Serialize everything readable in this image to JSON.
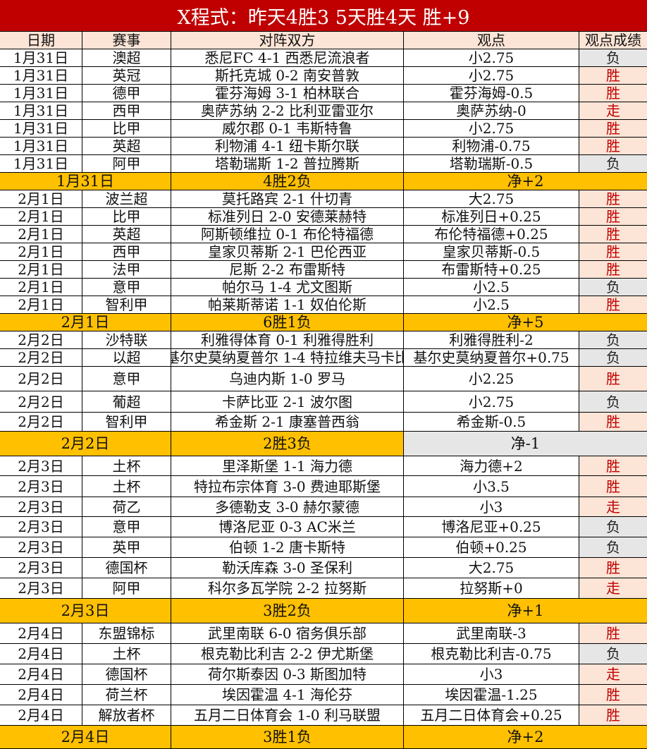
{
  "title": "X程式：昨天4胜3 5天胜4天 胜+9",
  "headers": [
    "日期",
    "赛事",
    "对阵双方",
    "观点",
    "观点成绩"
  ],
  "colors": {
    "title_bg": "#C00000",
    "header_bg": "#FCE4D6",
    "summary_bg": "#FFC000",
    "win_bg": "#FCE4D6",
    "win_text": "#C00000",
    "loss_bg": "#E7E6E6"
  },
  "groups": [
    {
      "rows": [
        [
          "1月31日",
          "澳超",
          "悉尼FC 4-1 西悉尼流浪者",
          "小2.75",
          "负"
        ],
        [
          "1月31日",
          "英冠",
          "斯托克城 0-2 南安普敦",
          "小2.75",
          "胜"
        ],
        [
          "1月31日",
          "德甲",
          "霍芬海姆 3-1 柏林联合",
          "霍芬海姆-0.5",
          "胜"
        ],
        [
          "1月31日",
          "西甲",
          "奥萨苏纳 2-2 比利亚雷亚尔",
          "奥萨苏纳-0",
          "走"
        ],
        [
          "1月31日",
          "比甲",
          "威尔郡 0-1 韦斯特鲁",
          "小2.75",
          "胜"
        ],
        [
          "1月31日",
          "英超",
          "利物浦 4-1 纽卡斯尔联",
          "利物浦-0.75",
          "胜"
        ],
        [
          "1月31日",
          "阿甲",
          "塔勒瑞斯 1-2 普拉腾斯",
          "塔勒瑞斯-0.5",
          "负"
        ]
      ],
      "summary": [
        "1月31日",
        "4胜2负",
        "净+2"
      ],
      "net_grey": false
    },
    {
      "rows": [
        [
          "2月1日",
          "波兰超",
          "莫托路宾 2-1 什切青",
          "大2.75",
          "胜"
        ],
        [
          "2月1日",
          "比甲",
          "标准列日 2-0 安德莱赫特",
          "标准列日+0.25",
          "胜"
        ],
        [
          "2月1日",
          "英超",
          "阿斯顿维拉 0-1 布伦特福德",
          "布伦特福德+0.25",
          "胜"
        ],
        [
          "2月1日",
          "西甲",
          "皇家贝蒂斯 2-1 巴伦西亚",
          "皇家贝蒂斯-0.5",
          "胜"
        ],
        [
          "2月1日",
          "法甲",
          "尼斯 2-2 布雷斯特",
          "布雷斯特+0.25",
          "胜"
        ],
        [
          "2月1日",
          "意甲",
          "帕尔马 1-4 尤文图斯",
          "小2.5",
          "负"
        ],
        [
          "2月1日",
          "智利甲",
          "帕莱斯蒂诺 1-1 奴伯伦斯",
          "小2.5",
          "胜"
        ]
      ],
      "summary": [
        "2月1日",
        "6胜1负",
        "净+5"
      ],
      "net_grey": false
    },
    {
      "rows": [
        [
          "2月2日",
          "沙特联",
          "利雅得体育 0-1 利雅得胜利",
          "利雅得胜利-2",
          "负"
        ],
        [
          "2月2日",
          "以超",
          "基尔史莫纳夏普尔 1-4 特拉维夫马卡比",
          "基尔史莫纳夏普尔+0.75",
          "负"
        ],
        [
          "2月2日",
          "意甲",
          "乌迪内斯 1-0 罗马",
          "小2.25",
          "胜"
        ],
        [
          "2月2日",
          "葡超",
          "卡萨比亚 2-1 波尔图",
          "小2.75",
          "负"
        ],
        [
          "2月2日",
          "智利甲",
          "希金斯 2-1 康塞普西翁",
          "希金斯-0.5",
          "胜"
        ]
      ],
      "summary": [
        "2月2日",
        "2胜3负",
        "净-1"
      ],
      "net_grey": true
    },
    {
      "rows": [
        [
          "2月3日",
          "土杯",
          "里泽斯堡 1-1 海力德",
          "海力德+2",
          "胜"
        ],
        [
          "2月3日",
          "土杯",
          "特拉布宗体育 3-0 费迪耶斯堡",
          "小3.5",
          "胜"
        ],
        [
          "2月3日",
          "荷乙",
          "多德勒支 3-0 赫尔蒙德",
          "小3",
          "走"
        ],
        [
          "2月3日",
          "意甲",
          "博洛尼亚 0-3 AC米兰",
          "博洛尼亚+0.25",
          "负"
        ],
        [
          "2月3日",
          "英甲",
          "伯顿 1-2 唐卡斯特",
          "伯顿+0.25",
          "负"
        ],
        [
          "2月3日",
          "德国杯",
          "勒沃库森 3-0 圣保利",
          "大2.75",
          "胜"
        ],
        [
          "2月3日",
          "阿甲",
          "科尔多瓦学院 2-2 拉努斯",
          "拉努斯+0",
          "走"
        ]
      ],
      "summary": [
        "2月3日",
        "3胜2负",
        "净+1"
      ],
      "net_grey": false
    },
    {
      "rows": [
        [
          "2月4日",
          "东盟锦标",
          "武里南联 6-0 宿务俱乐部",
          "武里南联-3",
          "胜"
        ],
        [
          "2月4日",
          "土杯",
          "根克勒比利吉 2-2 伊尤斯堡",
          "根克勒比利吉-0.75",
          "负"
        ],
        [
          "2月4日",
          "德国杯",
          "荷尔斯泰因 0-3 斯图加特",
          "小3",
          "走"
        ],
        [
          "2月4日",
          "荷兰杯",
          "埃因霍温 4-1 海伦芬",
          "埃因霍温-1.25",
          "胜"
        ],
        [
          "2月4日",
          "解放者杯",
          "五月二日体育会 1-0 利马联盟",
          "五月二日体育会+0.25",
          "胜"
        ]
      ],
      "summary": [
        "2月4日",
        "3胜1负",
        "净+2"
      ],
      "net_grey": false
    }
  ]
}
